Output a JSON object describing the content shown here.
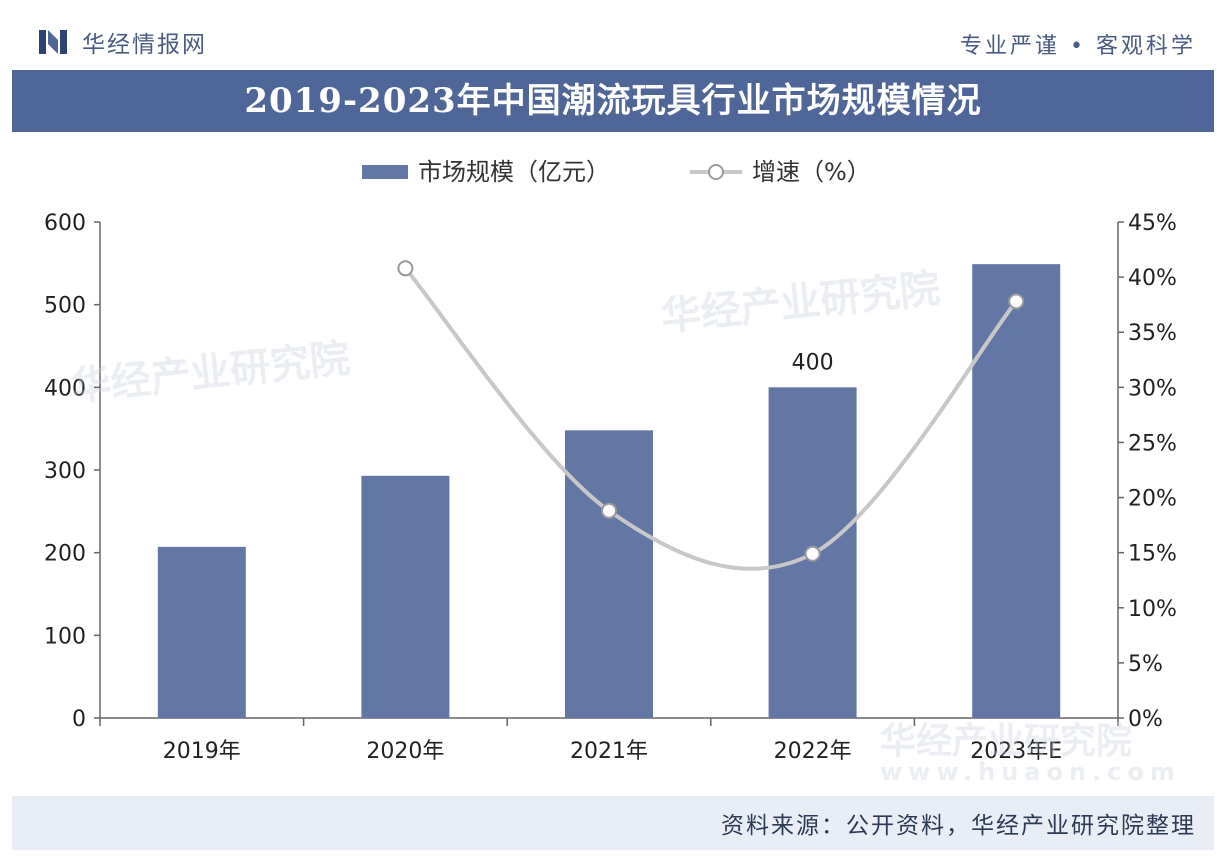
{
  "header": {
    "brand": "华经情报网",
    "slogan": "专业严谨 • 客观科学"
  },
  "footer": {
    "source": "资料来源：公开资料，华经产业研究院整理"
  },
  "watermark": {
    "name": "华经产业研究院",
    "url": "www.huaon.com"
  },
  "colors": {
    "bar": "#6277a3",
    "line": "#c8c8c8",
    "title_band": "#4e6698"
  },
  "chart_data": {
    "type": "bar",
    "title": "2019-2023年中国潮流玩具行业市场规模情况",
    "categories": [
      "2019年",
      "2020年",
      "2021年",
      "2022年",
      "2023年E"
    ],
    "series": [
      {
        "name": "市场规模（亿元）",
        "type": "bar",
        "axis": "left",
        "values": [
          207,
          293,
          348,
          400,
          549
        ]
      },
      {
        "name": "增速（%）",
        "type": "line",
        "axis": "right",
        "values": [
          null,
          40.8,
          18.8,
          14.9,
          37.8
        ]
      }
    ],
    "data_labels": [
      {
        "category": "2022年",
        "series": "市场规模（亿元）",
        "text": "400"
      }
    ],
    "y_left": {
      "ylim": [
        0,
        600
      ],
      "ticks": [
        "0",
        "100",
        "200",
        "300",
        "400",
        "500",
        "600"
      ]
    },
    "y_right": {
      "ylim": [
        0,
        45
      ],
      "ticks": [
        "0%",
        "5%",
        "10%",
        "15%",
        "20%",
        "25%",
        "30%",
        "35%",
        "40%",
        "45%"
      ]
    },
    "legend_position": "top-center",
    "grid": false
  }
}
